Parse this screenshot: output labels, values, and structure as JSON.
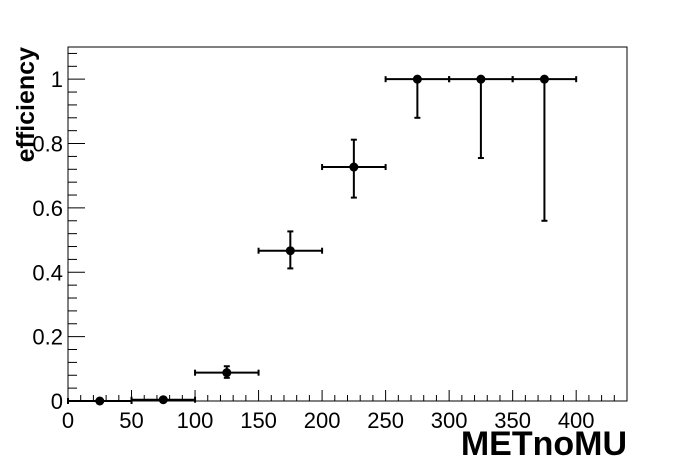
{
  "chart_data": {
    "type": "scatter",
    "title": "",
    "xlabel": "METnoMU",
    "ylabel": "efficiency",
    "xlim": [
      0,
      440
    ],
    "ylim": [
      0,
      1.1
    ],
    "x_ticks": [
      0,
      50,
      100,
      150,
      200,
      250,
      300,
      350,
      400
    ],
    "x_tick_labels": [
      "0",
      "50",
      "100",
      "150",
      "200",
      "250",
      "300",
      "350",
      "400"
    ],
    "y_ticks": [
      0,
      0.2,
      0.4,
      0.6,
      0.8,
      1
    ],
    "y_tick_labels": [
      "0",
      "0.2",
      "0.4",
      "0.6",
      "0.8",
      "1"
    ],
    "grid": false,
    "marker_color": "#000000",
    "points": [
      {
        "x": 25,
        "y": 0.0,
        "xerr": 25,
        "yerr_low": 0.0,
        "yerr_high": 0.0
      },
      {
        "x": 75,
        "y": 0.004,
        "xerr": 25,
        "yerr_low": 0.004,
        "yerr_high": 0.006
      },
      {
        "x": 125,
        "y": 0.088,
        "xerr": 25,
        "yerr_low": 0.016,
        "yerr_high": 0.02
      },
      {
        "x": 175,
        "y": 0.467,
        "xerr": 25,
        "yerr_low": 0.055,
        "yerr_high": 0.06
      },
      {
        "x": 225,
        "y": 0.727,
        "xerr": 25,
        "yerr_low": 0.095,
        "yerr_high": 0.085
      },
      {
        "x": 275,
        "y": 1.0,
        "xerr": 25,
        "yerr_low": 0.12,
        "yerr_high": 0.0
      },
      {
        "x": 325,
        "y": 1.0,
        "xerr": 25,
        "yerr_low": 0.245,
        "yerr_high": 0.0
      },
      {
        "x": 375,
        "y": 1.0,
        "xerr": 25,
        "yerr_low": 0.44,
        "yerr_high": 0.0
      }
    ]
  }
}
